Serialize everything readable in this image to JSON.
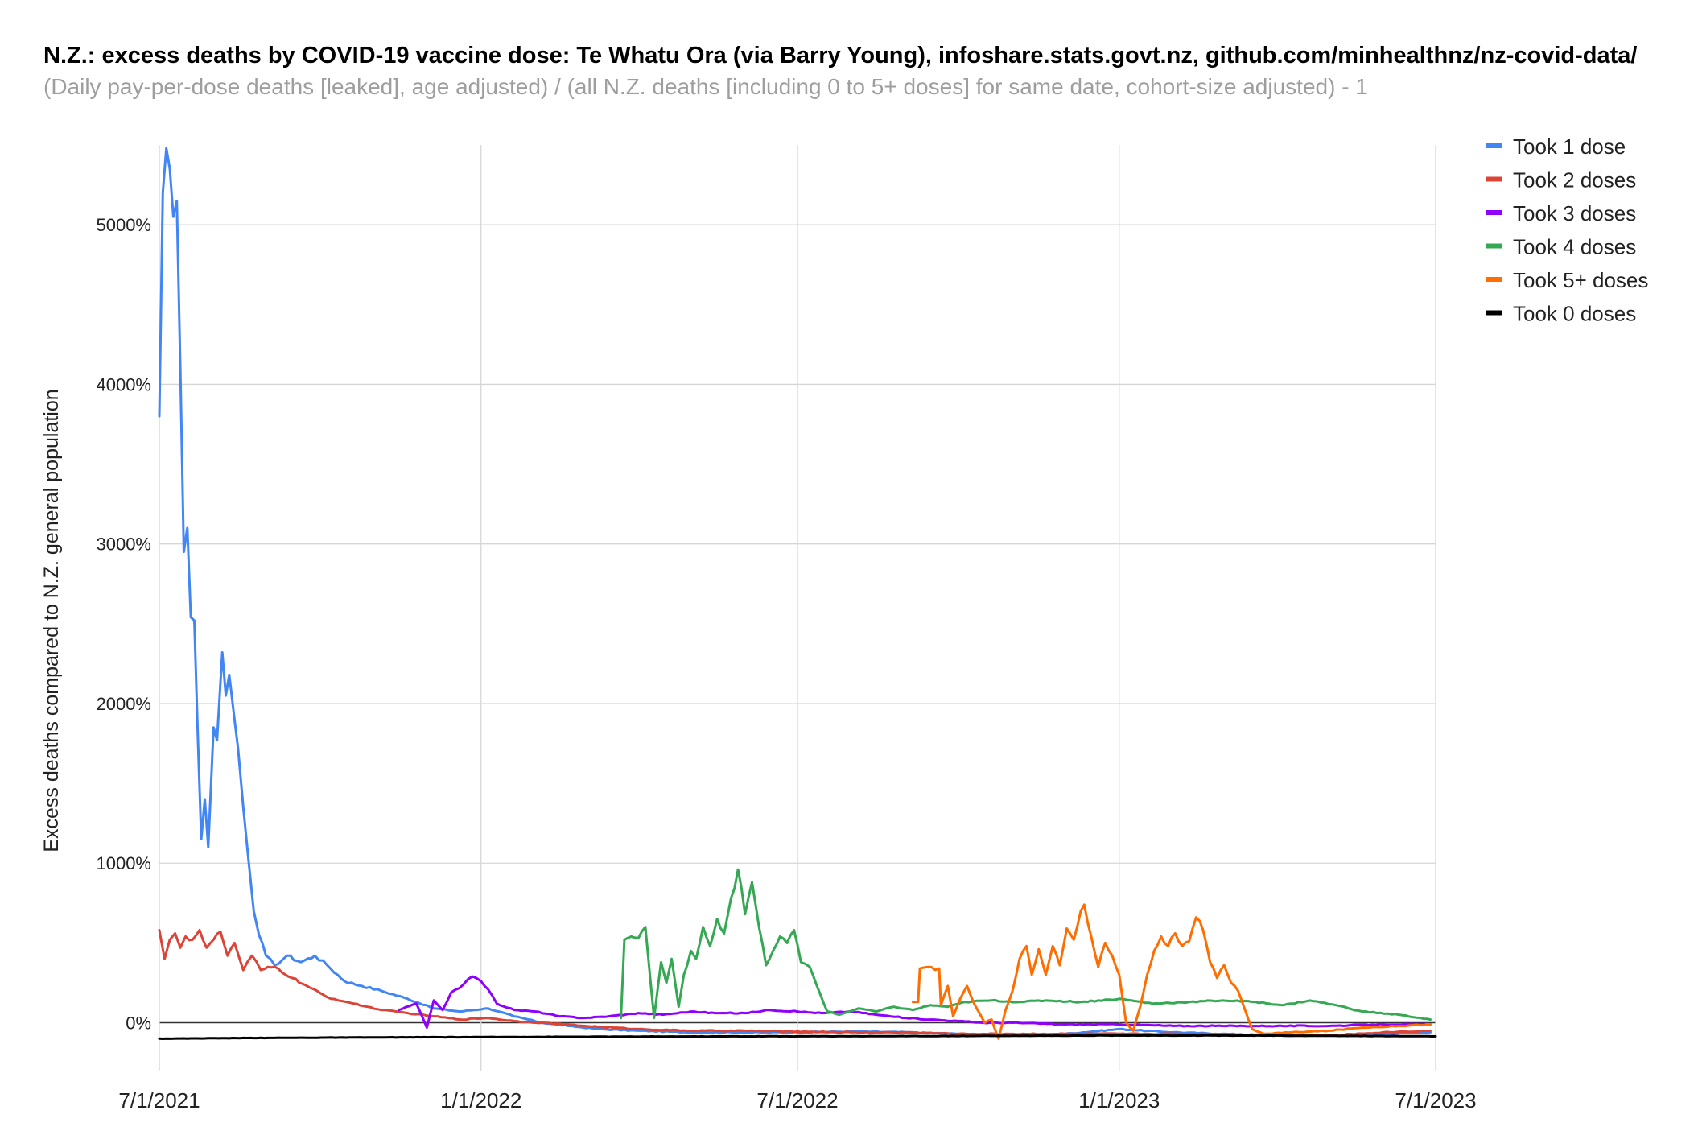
{
  "chart_data": {
    "type": "line",
    "title": "N.Z.: excess deaths by COVID-19 vaccine dose: Te Whatu Ora (via Barry Young), infoshare.stats.govt.nz, github.com/minhealthnz/nz-covid-data/",
    "subtitle": "(Daily pay-per-dose deaths [leaked], age adjusted) / (all N.Z. deaths [including 0 to 5+ doses] for same date, cohort-size adjusted) - 1",
    "xlabel": "",
    "ylabel": "Excess deaths compared to N.Z. general population",
    "xlim": [
      "2021-07-01",
      "2023-07-01"
    ],
    "ylim": [
      -300,
      5500
    ],
    "x_ticks": [
      "7/1/2021",
      "1/1/2022",
      "7/1/2022",
      "1/1/2023",
      "7/1/2023"
    ],
    "y_ticks": [
      {
        "value": 0,
        "label": "0%"
      },
      {
        "value": 1000,
        "label": "1000%"
      },
      {
        "value": 2000,
        "label": "2000%"
      },
      {
        "value": 3000,
        "label": "3000%"
      },
      {
        "value": 4000,
        "label": "4000%"
      },
      {
        "value": 5000,
        "label": "5000%"
      }
    ],
    "grid": true,
    "legend_position": "top-right",
    "series": [
      {
        "name": "Took 1 dose",
        "color": "#4285f4",
        "points": [
          [
            "2021-07-01",
            3800
          ],
          [
            "2021-07-03",
            5200
          ],
          [
            "2021-07-05",
            5480
          ],
          [
            "2021-07-07",
            5350
          ],
          [
            "2021-07-09",
            5050
          ],
          [
            "2021-07-11",
            5150
          ],
          [
            "2021-07-13",
            4100
          ],
          [
            "2021-07-15",
            2950
          ],
          [
            "2021-07-17",
            3100
          ],
          [
            "2021-07-19",
            2540
          ],
          [
            "2021-07-21",
            2520
          ],
          [
            "2021-07-23",
            1800
          ],
          [
            "2021-07-25",
            1150
          ],
          [
            "2021-07-27",
            1400
          ],
          [
            "2021-07-29",
            1100
          ],
          [
            "2021-08-01",
            1850
          ],
          [
            "2021-08-03",
            1770
          ],
          [
            "2021-08-06",
            2320
          ],
          [
            "2021-08-08",
            2050
          ],
          [
            "2021-08-10",
            2180
          ],
          [
            "2021-08-13",
            1900
          ],
          [
            "2021-08-15",
            1720
          ],
          [
            "2021-08-18",
            1350
          ],
          [
            "2021-08-21",
            1020
          ],
          [
            "2021-08-24",
            700
          ],
          [
            "2021-08-27",
            550
          ],
          [
            "2021-08-31",
            420
          ],
          [
            "2021-09-05",
            360
          ],
          [
            "2021-09-12",
            420
          ],
          [
            "2021-09-20",
            380
          ],
          [
            "2021-09-28",
            420
          ],
          [
            "2021-10-05",
            360
          ],
          [
            "2021-10-15",
            260
          ],
          [
            "2021-10-25",
            230
          ],
          [
            "2021-11-05",
            200
          ],
          [
            "2021-11-20",
            150
          ],
          [
            "2021-12-05",
            90
          ],
          [
            "2021-12-20",
            70
          ],
          [
            "2022-01-05",
            90
          ],
          [
            "2022-01-20",
            40
          ],
          [
            "2022-02-05",
            0
          ],
          [
            "2022-02-20",
            -20
          ],
          [
            "2022-03-10",
            -40
          ],
          [
            "2022-04-01",
            -50
          ],
          [
            "2022-05-01",
            -60
          ],
          [
            "2022-06-01",
            -60
          ],
          [
            "2022-07-01",
            -60
          ],
          [
            "2022-08-01",
            -55
          ],
          [
            "2022-09-01",
            -60
          ],
          [
            "2022-10-01",
            -70
          ],
          [
            "2022-11-01",
            -80
          ],
          [
            "2022-12-01",
            -70
          ],
          [
            "2023-01-01",
            -40
          ],
          [
            "2023-02-01",
            -60
          ],
          [
            "2023-03-01",
            -70
          ],
          [
            "2023-04-01",
            -80
          ],
          [
            "2023-05-01",
            -80
          ],
          [
            "2023-06-01",
            -70
          ],
          [
            "2023-06-28",
            -60
          ]
        ]
      },
      {
        "name": "Took 2 doses",
        "color": "#db4437",
        "points": [
          [
            "2021-07-01",
            580
          ],
          [
            "2021-07-04",
            400
          ],
          [
            "2021-07-07",
            520
          ],
          [
            "2021-07-10",
            560
          ],
          [
            "2021-07-13",
            470
          ],
          [
            "2021-07-16",
            540
          ],
          [
            "2021-07-20",
            520
          ],
          [
            "2021-07-24",
            580
          ],
          [
            "2021-07-28",
            470
          ],
          [
            "2021-08-01",
            520
          ],
          [
            "2021-08-05",
            570
          ],
          [
            "2021-08-09",
            420
          ],
          [
            "2021-08-13",
            500
          ],
          [
            "2021-08-18",
            330
          ],
          [
            "2021-08-23",
            420
          ],
          [
            "2021-08-28",
            330
          ],
          [
            "2021-09-05",
            350
          ],
          [
            "2021-09-15",
            280
          ],
          [
            "2021-09-25",
            220
          ],
          [
            "2021-10-05",
            160
          ],
          [
            "2021-10-20",
            120
          ],
          [
            "2021-11-05",
            80
          ],
          [
            "2021-11-20",
            60
          ],
          [
            "2021-12-05",
            40
          ],
          [
            "2021-12-20",
            20
          ],
          [
            "2022-01-05",
            30
          ],
          [
            "2022-01-20",
            10
          ],
          [
            "2022-02-05",
            0
          ],
          [
            "2022-03-01",
            -20
          ],
          [
            "2022-04-01",
            -40
          ],
          [
            "2022-05-01",
            -50
          ],
          [
            "2022-06-01",
            -50
          ],
          [
            "2022-07-01",
            -55
          ],
          [
            "2022-08-01",
            -60
          ],
          [
            "2022-09-01",
            -60
          ],
          [
            "2022-10-01",
            -70
          ],
          [
            "2022-11-01",
            -70
          ],
          [
            "2022-12-01",
            -70
          ],
          [
            "2023-01-01",
            -70
          ],
          [
            "2023-02-01",
            -70
          ],
          [
            "2023-03-01",
            -70
          ],
          [
            "2023-04-01",
            -80
          ],
          [
            "2023-05-01",
            -80
          ],
          [
            "2023-06-01",
            -60
          ],
          [
            "2023-06-28",
            -50
          ]
        ]
      },
      {
        "name": "Took 3 doses",
        "color": "#8f00ff",
        "points": [
          [
            "2021-11-15",
            80
          ],
          [
            "2021-11-25",
            120
          ],
          [
            "2021-12-01",
            -30
          ],
          [
            "2021-12-05",
            140
          ],
          [
            "2021-12-10",
            80
          ],
          [
            "2021-12-15",
            190
          ],
          [
            "2021-12-22",
            240
          ],
          [
            "2021-12-27",
            290
          ],
          [
            "2022-01-01",
            260
          ],
          [
            "2022-01-05",
            210
          ],
          [
            "2022-01-10",
            120
          ],
          [
            "2022-01-20",
            80
          ],
          [
            "2022-02-01",
            70
          ],
          [
            "2022-02-15",
            40
          ],
          [
            "2022-03-01",
            30
          ],
          [
            "2022-03-15",
            40
          ],
          [
            "2022-04-01",
            60
          ],
          [
            "2022-04-15",
            50
          ],
          [
            "2022-05-01",
            70
          ],
          [
            "2022-05-15",
            60
          ],
          [
            "2022-06-01",
            60
          ],
          [
            "2022-06-15",
            80
          ],
          [
            "2022-07-01",
            70
          ],
          [
            "2022-07-15",
            60
          ],
          [
            "2022-08-01",
            70
          ],
          [
            "2022-08-15",
            50
          ],
          [
            "2022-09-01",
            30
          ],
          [
            "2022-09-15",
            20
          ],
          [
            "2022-10-01",
            10
          ],
          [
            "2022-10-15",
            0
          ],
          [
            "2022-11-01",
            0
          ],
          [
            "2022-12-01",
            -10
          ],
          [
            "2023-01-01",
            -10
          ],
          [
            "2023-02-01",
            -20
          ],
          [
            "2023-03-01",
            -20
          ],
          [
            "2023-04-01",
            -20
          ],
          [
            "2023-05-01",
            -20
          ],
          [
            "2023-06-01",
            -10
          ],
          [
            "2023-06-28",
            -10
          ]
        ]
      },
      {
        "name": "Took 4 doses",
        "color": "#34a853",
        "points": [
          [
            "2022-03-22",
            30
          ],
          [
            "2022-03-24",
            520
          ],
          [
            "2022-03-28",
            540
          ],
          [
            "2022-04-01",
            530
          ],
          [
            "2022-04-05",
            600
          ],
          [
            "2022-04-08",
            250
          ],
          [
            "2022-04-10",
            30
          ],
          [
            "2022-04-14",
            380
          ],
          [
            "2022-04-17",
            250
          ],
          [
            "2022-04-20",
            400
          ],
          [
            "2022-04-24",
            100
          ],
          [
            "2022-04-27",
            300
          ],
          [
            "2022-05-01",
            450
          ],
          [
            "2022-05-04",
            400
          ],
          [
            "2022-05-08",
            600
          ],
          [
            "2022-05-12",
            480
          ],
          [
            "2022-05-16",
            650
          ],
          [
            "2022-05-20",
            560
          ],
          [
            "2022-05-24",
            780
          ],
          [
            "2022-05-28",
            960
          ],
          [
            "2022-06-01",
            680
          ],
          [
            "2022-06-05",
            880
          ],
          [
            "2022-06-09",
            600
          ],
          [
            "2022-06-13",
            360
          ],
          [
            "2022-06-17",
            450
          ],
          [
            "2022-06-21",
            540
          ],
          [
            "2022-06-25",
            500
          ],
          [
            "2022-06-29",
            580
          ],
          [
            "2022-07-03",
            380
          ],
          [
            "2022-07-08",
            350
          ],
          [
            "2022-07-14",
            180
          ],
          [
            "2022-07-18",
            70
          ],
          [
            "2022-07-25",
            50
          ],
          [
            "2022-08-05",
            90
          ],
          [
            "2022-08-15",
            70
          ],
          [
            "2022-08-25",
            100
          ],
          [
            "2022-09-05",
            80
          ],
          [
            "2022-09-15",
            110
          ],
          [
            "2022-09-25",
            100
          ],
          [
            "2022-10-05",
            130
          ],
          [
            "2022-10-20",
            140
          ],
          [
            "2022-11-05",
            130
          ],
          [
            "2022-11-20",
            140
          ],
          [
            "2022-12-10",
            130
          ],
          [
            "2023-01-01",
            150
          ],
          [
            "2023-01-20",
            120
          ],
          [
            "2023-02-10",
            130
          ],
          [
            "2023-03-01",
            140
          ],
          [
            "2023-03-20",
            130
          ],
          [
            "2023-04-05",
            110
          ],
          [
            "2023-04-20",
            140
          ],
          [
            "2023-05-05",
            110
          ],
          [
            "2023-05-20",
            70
          ],
          [
            "2023-06-10",
            50
          ],
          [
            "2023-06-28",
            20
          ]
        ]
      },
      {
        "name": "Took 5+ doses",
        "color": "#ff6d01",
        "points": [
          [
            "2022-09-05",
            130
          ],
          [
            "2022-09-08",
            130
          ],
          [
            "2022-09-09",
            340
          ],
          [
            "2022-09-20",
            340
          ],
          [
            "2022-09-21",
            110
          ],
          [
            "2022-09-25",
            230
          ],
          [
            "2022-09-28",
            40
          ],
          [
            "2022-10-02",
            150
          ],
          [
            "2022-10-06",
            230
          ],
          [
            "2022-10-10",
            120
          ],
          [
            "2022-10-16",
            0
          ],
          [
            "2022-10-20",
            20
          ],
          [
            "2022-10-24",
            -100
          ],
          [
            "2022-10-28",
            80
          ],
          [
            "2022-11-01",
            200
          ],
          [
            "2022-11-05",
            400
          ],
          [
            "2022-11-09",
            480
          ],
          [
            "2022-11-12",
            300
          ],
          [
            "2022-11-16",
            460
          ],
          [
            "2022-11-20",
            300
          ],
          [
            "2022-11-24",
            480
          ],
          [
            "2022-11-28",
            360
          ],
          [
            "2022-12-02",
            590
          ],
          [
            "2022-12-06",
            520
          ],
          [
            "2022-12-10",
            700
          ],
          [
            "2022-12-12",
            740
          ],
          [
            "2022-12-16",
            540
          ],
          [
            "2022-12-20",
            350
          ],
          [
            "2022-12-24",
            500
          ],
          [
            "2022-12-28",
            420
          ],
          [
            "2023-01-01",
            300
          ],
          [
            "2023-01-05",
            0
          ],
          [
            "2023-01-09",
            -50
          ],
          [
            "2023-01-13",
            100
          ],
          [
            "2023-01-17",
            300
          ],
          [
            "2023-01-21",
            450
          ],
          [
            "2023-01-25",
            540
          ],
          [
            "2023-01-29",
            480
          ],
          [
            "2023-02-02",
            560
          ],
          [
            "2023-02-06",
            480
          ],
          [
            "2023-02-10",
            510
          ],
          [
            "2023-02-14",
            660
          ],
          [
            "2023-02-18",
            580
          ],
          [
            "2023-02-22",
            380
          ],
          [
            "2023-02-26",
            280
          ],
          [
            "2023-03-02",
            360
          ],
          [
            "2023-03-06",
            250
          ],
          [
            "2023-03-10",
            200
          ],
          [
            "2023-03-14",
            80
          ],
          [
            "2023-03-18",
            -40
          ],
          [
            "2023-03-25",
            -70
          ],
          [
            "2023-04-10",
            -60
          ],
          [
            "2023-05-01",
            -50
          ],
          [
            "2023-05-20",
            -30
          ],
          [
            "2023-06-10",
            -20
          ],
          [
            "2023-06-28",
            -10
          ]
        ]
      },
      {
        "name": "Took 0 doses",
        "color": "#000000",
        "points": [
          [
            "2021-07-01",
            -100
          ],
          [
            "2021-09-01",
            -95
          ],
          [
            "2021-11-01",
            -92
          ],
          [
            "2022-01-01",
            -90
          ],
          [
            "2022-03-01",
            -88
          ],
          [
            "2022-05-01",
            -86
          ],
          [
            "2022-07-01",
            -85
          ],
          [
            "2022-09-01",
            -84
          ],
          [
            "2022-11-01",
            -82
          ],
          [
            "2023-01-01",
            -80
          ],
          [
            "2023-03-01",
            -80
          ],
          [
            "2023-05-01",
            -82
          ],
          [
            "2023-07-01",
            -85
          ]
        ]
      }
    ]
  }
}
